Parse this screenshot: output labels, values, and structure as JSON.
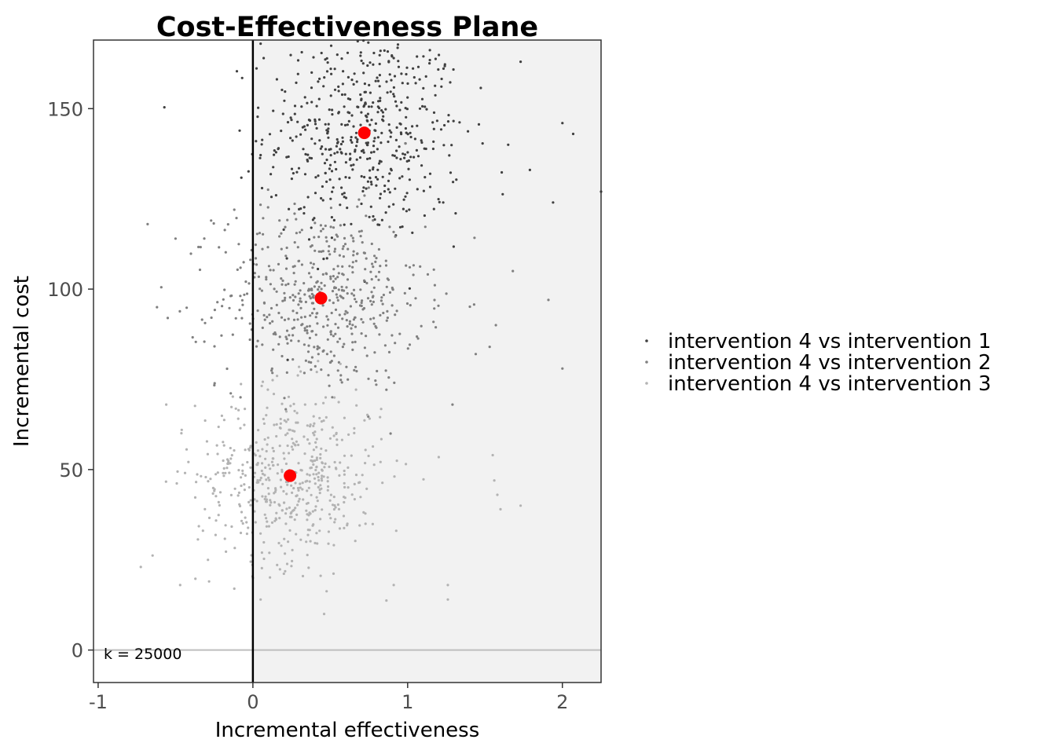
{
  "chart_data": {
    "type": "scatter",
    "title": "Cost-Effectiveness Plane",
    "xlabel": "Incremental effectiveness",
    "ylabel": "Incremental cost",
    "xlim": [
      -1.03,
      2.25
    ],
    "ylim": [
      -9,
      169
    ],
    "x_ticks": [
      -1,
      0,
      1,
      2
    ],
    "y_ticks": [
      0,
      50,
      100,
      150
    ],
    "grid": false,
    "legend_position": "right",
    "annotation": "k = 25000",
    "region_shade": {
      "x_from": 0,
      "color": "#f2f2f2"
    },
    "reference_lines": {
      "x": 0,
      "y": 0
    },
    "series": [
      {
        "name": "intervention 4 vs intervention 1",
        "color": "#404040",
        "mean": [
          0.72,
          143.3
        ],
        "spread": [
          0.32,
          15.0
        ],
        "n": 520,
        "points": [
          [
            0.05,
            168
          ],
          [
            0.07,
            164
          ],
          [
            1.73,
            163
          ],
          [
            0.38,
            160
          ],
          [
            2.07,
            143
          ],
          [
            2.0,
            146
          ],
          [
            1.94,
            124
          ],
          [
            2.25,
            127
          ],
          [
            1.79,
            133
          ],
          [
            0.02,
            141
          ],
          [
            1.65,
            140
          ],
          [
            0.15,
            126
          ],
          [
            0.6,
            131
          ],
          [
            0.33,
            121
          ],
          [
            1.01,
            122
          ],
          [
            1.31,
            121
          ],
          [
            1.23,
            124
          ]
        ]
      },
      {
        "name": "intervention 4 vs intervention 2",
        "color": "#808080",
        "mean": [
          0.44,
          97.5
        ],
        "spread": [
          0.33,
          12.5
        ],
        "n": 520,
        "points": [
          [
            -0.68,
            118
          ],
          [
            -0.5,
            114
          ],
          [
            -0.27,
            119
          ],
          [
            -0.12,
            122
          ],
          [
            -0.62,
            95
          ],
          [
            -0.55,
            92
          ],
          [
            2.0,
            78
          ],
          [
            1.68,
            105
          ],
          [
            1.53,
            84
          ],
          [
            1.91,
            97
          ],
          [
            1.57,
            90
          ],
          [
            1.29,
            68
          ],
          [
            1.44,
            82
          ]
        ]
      },
      {
        "name": "intervention 4 vs intervention 3",
        "color": "#b3b3b3",
        "mean": [
          0.24,
          48.3
        ],
        "spread": [
          0.3,
          12.0
        ],
        "n": 520,
        "points": [
          [
            -0.47,
            18
          ],
          [
            -0.29,
            25
          ],
          [
            -0.12,
            17
          ],
          [
            0.0,
            20
          ],
          [
            0.05,
            14
          ],
          [
            0.46,
            10
          ],
          [
            0.91,
            18
          ],
          [
            1.26,
            14
          ],
          [
            1.26,
            18
          ],
          [
            1.73,
            40
          ],
          [
            1.55,
            54
          ],
          [
            1.56,
            47
          ],
          [
            1.58,
            43
          ],
          [
            1.6,
            39
          ],
          [
            -0.56,
            68
          ],
          [
            -0.46,
            61
          ]
        ]
      }
    ],
    "mean_points": {
      "color": "#ff0000",
      "values": [
        [
          0.72,
          143.3
        ],
        [
          0.44,
          97.5
        ],
        [
          0.24,
          48.3
        ]
      ]
    }
  }
}
